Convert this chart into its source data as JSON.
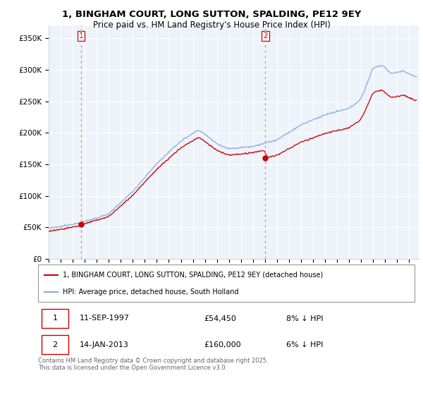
{
  "title": "1, BINGHAM COURT, LONG SUTTON, SPALDING, PE12 9EY",
  "subtitle": "Price paid vs. HM Land Registry's House Price Index (HPI)",
  "legend_line1": "1, BINGHAM COURT, LONG SUTTON, SPALDING, PE12 9EY (detached house)",
  "legend_line2": "HPI: Average price, detached house, South Holland",
  "table_row1": [
    "1",
    "11-SEP-1997",
    "£54,450",
    "8% ↓ HPI"
  ],
  "table_row2": [
    "2",
    "14-JAN-2013",
    "£160,000",
    "6% ↓ HPI"
  ],
  "footnote": "Contains HM Land Registry data © Crown copyright and database right 2025.\nThis data is licensed under the Open Government Licence v3.0.",
  "red_color": "#cc0000",
  "blue_color": "#88aadd",
  "dashed_color": "#ee8888",
  "chart_bg": "#eef3fa",
  "ylim": [
    0,
    370000
  ],
  "yticks": [
    0,
    50000,
    100000,
    150000,
    200000,
    250000,
    300000,
    350000
  ],
  "ytick_labels": [
    "£0",
    "£50K",
    "£100K",
    "£150K",
    "£200K",
    "£250K",
    "£300K",
    "£350K"
  ],
  "xlim_start": 1995.0,
  "xlim_end": 2025.8,
  "marker1_x": 1997.7,
  "marker1_y": 54450,
  "marker2_x": 2013.04,
  "marker2_y": 160000,
  "purchase1_label": "1",
  "purchase2_label": "2"
}
